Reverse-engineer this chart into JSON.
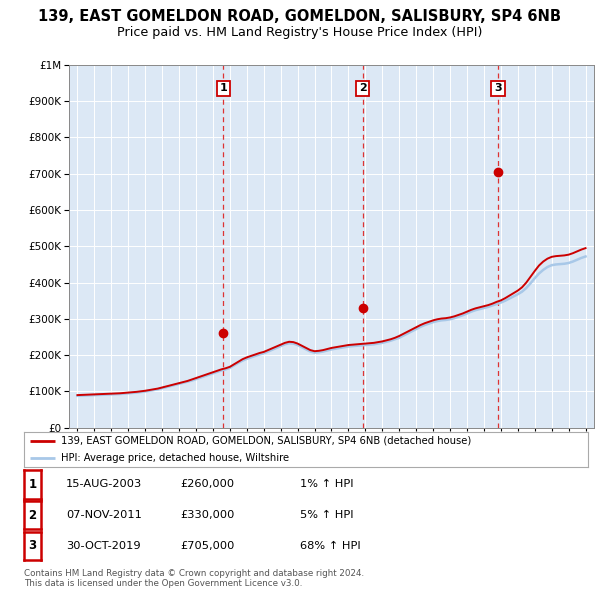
{
  "title": "139, EAST GOMELDON ROAD, GOMELDON, SALISBURY, SP4 6NB",
  "subtitle": "Price paid vs. HM Land Registry's House Price Index (HPI)",
  "hpi_label": "HPI: Average price, detached house, Wiltshire",
  "property_label": "139, EAST GOMELDON ROAD, GOMELDON, SALISBURY, SP4 6NB (detached house)",
  "footer_line1": "Contains HM Land Registry data © Crown copyright and database right 2024.",
  "footer_line2": "This data is licensed under the Open Government Licence v3.0.",
  "sales": [
    {
      "date": "15-AUG-2003",
      "year": 2003.62,
      "price": 260000,
      "label": "1",
      "pct": "1% ↑ HPI"
    },
    {
      "date": "07-NOV-2011",
      "year": 2011.85,
      "price": 330000,
      "label": "2",
      "pct": "5% ↑ HPI"
    },
    {
      "date": "30-OCT-2019",
      "year": 2019.83,
      "price": 705000,
      "label": "3",
      "pct": "68% ↑ HPI"
    }
  ],
  "hpi_years": [
    1995.0,
    1995.25,
    1995.5,
    1995.75,
    1996.0,
    1996.25,
    1996.5,
    1996.75,
    1997.0,
    1997.25,
    1997.5,
    1997.75,
    1998.0,
    1998.25,
    1998.5,
    1998.75,
    1999.0,
    1999.25,
    1999.5,
    1999.75,
    2000.0,
    2000.25,
    2000.5,
    2000.75,
    2001.0,
    2001.25,
    2001.5,
    2001.75,
    2002.0,
    2002.25,
    2002.5,
    2002.75,
    2003.0,
    2003.25,
    2003.5,
    2003.75,
    2004.0,
    2004.25,
    2004.5,
    2004.75,
    2005.0,
    2005.25,
    2005.5,
    2005.75,
    2006.0,
    2006.25,
    2006.5,
    2006.75,
    2007.0,
    2007.25,
    2007.5,
    2007.75,
    2008.0,
    2008.25,
    2008.5,
    2008.75,
    2009.0,
    2009.25,
    2009.5,
    2009.75,
    2010.0,
    2010.25,
    2010.5,
    2010.75,
    2011.0,
    2011.25,
    2011.5,
    2011.75,
    2012.0,
    2012.25,
    2012.5,
    2012.75,
    2013.0,
    2013.25,
    2013.5,
    2013.75,
    2014.0,
    2014.25,
    2014.5,
    2014.75,
    2015.0,
    2015.25,
    2015.5,
    2015.75,
    2016.0,
    2016.25,
    2016.5,
    2016.75,
    2017.0,
    2017.25,
    2017.5,
    2017.75,
    2018.0,
    2018.25,
    2018.5,
    2018.75,
    2019.0,
    2019.25,
    2019.5,
    2019.75,
    2020.0,
    2020.25,
    2020.5,
    2020.75,
    2021.0,
    2021.25,
    2021.5,
    2021.75,
    2022.0,
    2022.25,
    2022.5,
    2022.75,
    2023.0,
    2023.25,
    2023.5,
    2023.75,
    2024.0,
    2024.25,
    2024.5,
    2024.75,
    2025.0
  ],
  "hpi_values": [
    88000,
    88500,
    89000,
    89500,
    90000,
    90500,
    91000,
    91500,
    92000,
    92500,
    93000,
    94000,
    95000,
    96000,
    97000,
    98500,
    100000,
    102000,
    104000,
    106000,
    109000,
    112000,
    115000,
    118000,
    121000,
    124000,
    127000,
    130000,
    134000,
    138000,
    142000,
    146000,
    150000,
    154000,
    158000,
    161000,
    165000,
    172000,
    179000,
    185000,
    190000,
    194000,
    198000,
    202000,
    205000,
    210000,
    215000,
    220000,
    225000,
    230000,
    233000,
    232000,
    228000,
    222000,
    216000,
    210000,
    207000,
    208000,
    210000,
    213000,
    216000,
    218000,
    220000,
    222000,
    224000,
    225000,
    226000,
    227000,
    228000,
    229000,
    230000,
    232000,
    234000,
    237000,
    240000,
    244000,
    248000,
    254000,
    260000,
    266000,
    272000,
    278000,
    283000,
    287000,
    291000,
    294000,
    296000,
    297000,
    299000,
    302000,
    306000,
    310000,
    315000,
    320000,
    324000,
    327000,
    330000,
    333000,
    337000,
    341000,
    345000,
    350000,
    356000,
    362000,
    368000,
    375000,
    385000,
    398000,
    412000,
    425000,
    435000,
    443000,
    448000,
    450000,
    451000,
    452000,
    454000,
    458000,
    463000,
    468000,
    472000
  ],
  "prop_years": [
    1995.0,
    1995.25,
    1995.5,
    1995.75,
    1996.0,
    1996.25,
    1996.5,
    1996.75,
    1997.0,
    1997.25,
    1997.5,
    1997.75,
    1998.0,
    1998.25,
    1998.5,
    1998.75,
    1999.0,
    1999.25,
    1999.5,
    1999.75,
    2000.0,
    2000.25,
    2000.5,
    2000.75,
    2001.0,
    2001.25,
    2001.5,
    2001.75,
    2002.0,
    2002.25,
    2002.5,
    2002.75,
    2003.0,
    2003.25,
    2003.5,
    2003.75,
    2004.0,
    2004.25,
    2004.5,
    2004.75,
    2005.0,
    2005.25,
    2005.5,
    2005.75,
    2006.0,
    2006.25,
    2006.5,
    2006.75,
    2007.0,
    2007.25,
    2007.5,
    2007.75,
    2008.0,
    2008.25,
    2008.5,
    2008.75,
    2009.0,
    2009.25,
    2009.5,
    2009.75,
    2010.0,
    2010.25,
    2010.5,
    2010.75,
    2011.0,
    2011.25,
    2011.5,
    2011.75,
    2012.0,
    2012.25,
    2012.5,
    2012.75,
    2013.0,
    2013.25,
    2013.5,
    2013.75,
    2014.0,
    2014.25,
    2014.5,
    2014.75,
    2015.0,
    2015.25,
    2015.5,
    2015.75,
    2016.0,
    2016.25,
    2016.5,
    2016.75,
    2017.0,
    2017.25,
    2017.5,
    2017.75,
    2018.0,
    2018.25,
    2018.5,
    2018.75,
    2019.0,
    2019.25,
    2019.5,
    2019.75,
    2020.0,
    2020.25,
    2020.5,
    2020.75,
    2021.0,
    2021.25,
    2021.5,
    2021.75,
    2022.0,
    2022.25,
    2022.5,
    2022.75,
    2023.0,
    2023.25,
    2023.5,
    2023.75,
    2024.0,
    2024.25,
    2024.5,
    2024.75,
    2025.0
  ],
  "prop_values": [
    90000,
    90500,
    91000,
    91500,
    92000,
    92500,
    93000,
    93500,
    94000,
    94500,
    95000,
    96000,
    97000,
    98000,
    99000,
    100500,
    102000,
    104000,
    106000,
    108000,
    111000,
    114000,
    117000,
    120000,
    123000,
    126000,
    129000,
    133000,
    137000,
    141000,
    145000,
    149000,
    153000,
    157000,
    161000,
    164000,
    168000,
    175000,
    182000,
    189000,
    194000,
    198000,
    202000,
    206000,
    209000,
    214000,
    219000,
    224000,
    229000,
    234000,
    237000,
    236000,
    232000,
    226000,
    220000,
    214000,
    211000,
    212000,
    214000,
    217000,
    220000,
    222000,
    224000,
    226000,
    228000,
    229000,
    230000,
    231000,
    232000,
    233000,
    234000,
    236000,
    238000,
    241000,
    244000,
    248000,
    253000,
    259000,
    265000,
    271000,
    277000,
    283000,
    288000,
    292000,
    296000,
    299000,
    301000,
    302000,
    304000,
    307000,
    311000,
    315000,
    320000,
    325000,
    329000,
    332000,
    335000,
    338000,
    342000,
    347000,
    351000,
    357000,
    364000,
    371000,
    378000,
    387000,
    400000,
    416000,
    432000,
    447000,
    458000,
    466000,
    471000,
    473000,
    474000,
    475000,
    477000,
    481000,
    486000,
    491000,
    495000
  ],
  "ylim": [
    0,
    1000000
  ],
  "xlim": [
    1994.5,
    2025.5
  ],
  "plot_bg": "#dce8f5",
  "hpi_color": "#a8c8e8",
  "prop_color": "#cc0000",
  "vline_color": "#dd3333",
  "marker_color": "#cc0000"
}
